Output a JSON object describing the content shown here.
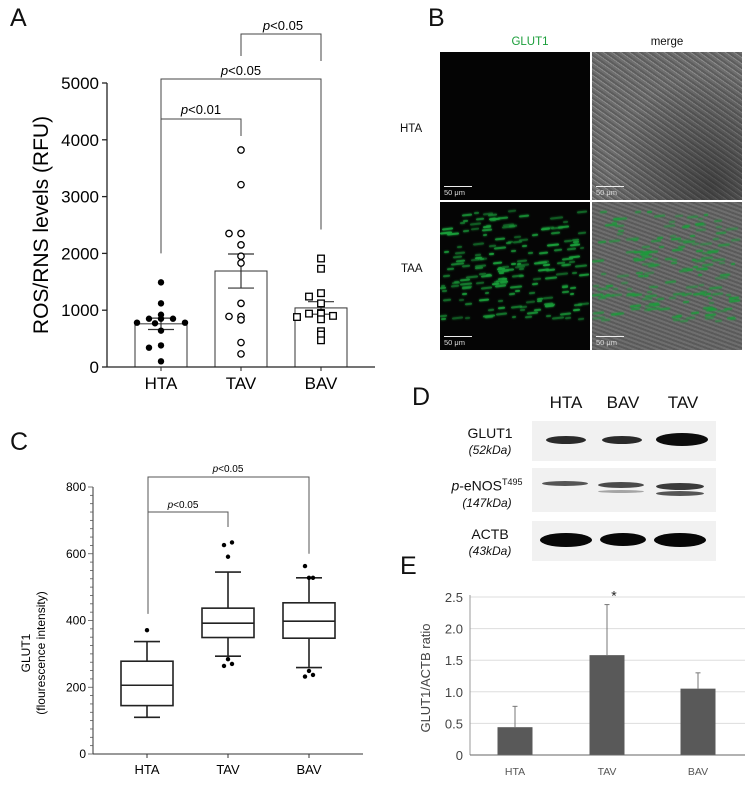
{
  "figure": {
    "panels": {
      "A": {
        "letter": "A"
      },
      "B": {
        "letter": "B"
      },
      "C": {
        "letter": "C"
      },
      "D": {
        "letter": "D"
      },
      "E": {
        "letter": "E"
      }
    }
  },
  "panel_b": {
    "column_headers": [
      "GLUT1",
      "merge"
    ],
    "row_labels": [
      "HTA",
      "TAA"
    ],
    "scale_bar": "50 μm",
    "glut1_color": "#1a9e3a"
  },
  "panel_d": {
    "lanes": [
      "HTA",
      "BAV",
      "TAV"
    ],
    "rows": [
      {
        "protein": "GLUT1",
        "kda": "(52kDa)"
      },
      {
        "protein_prefix": "p",
        "protein": "-eNOS",
        "superscript": "T495",
        "kda": "(147kDa)"
      },
      {
        "protein": "ACTB",
        "kda": "(43kDa)"
      }
    ]
  },
  "chart_data": [
    {
      "panel": "A",
      "type": "bar",
      "title": "",
      "categories": [
        "HTA",
        "TAV",
        "BAV"
      ],
      "values": [
        760,
        1690,
        1040
      ],
      "sem": [
        100,
        300,
        110
      ],
      "ylabel": "ROS/RNS levels (RFU)",
      "xlabel": "",
      "ylim": [
        0,
        5000
      ],
      "yticks": [
        "0",
        "1000",
        "2000",
        "3000",
        "4000",
        "5000"
      ],
      "points": {
        "HTA": [
          1490,
          1120,
          920,
          850,
          850,
          850,
          780,
          780,
          770,
          640,
          380,
          340,
          100
        ],
        "TAV": [
          3820,
          3210,
          2350,
          2350,
          2150,
          1950,
          1830,
          1120,
          890,
          890,
          830,
          430,
          230
        ],
        "BAV": [
          1910,
          1730,
          1300,
          1240,
          1120,
          950,
          940,
          940,
          900,
          880,
          840,
          630,
          570,
          470
        ]
      },
      "markers": {
        "HTA": "filled-circle",
        "TAV": "open-circle",
        "BAV": "open-square"
      },
      "annotations": [
        {
          "from": "HTA",
          "to": "TAV",
          "text": "p<0.01"
        },
        {
          "from": "HTA",
          "to": "BAV",
          "text": "p<0.05"
        },
        {
          "from": "TAV",
          "to": "BAV",
          "text": "p<0.05"
        }
      ],
      "grid": false
    },
    {
      "panel": "C",
      "type": "box",
      "categories": [
        "HTA",
        "TAV",
        "BAV"
      ],
      "boxes": [
        {
          "name": "HTA",
          "whisker_low": 110,
          "q1": 145,
          "median": 206,
          "q3": 278,
          "whisker_high": 337,
          "outliers": [
            371
          ]
        },
        {
          "name": "TAV",
          "whisker_low": 293,
          "q1": 349,
          "median": 392,
          "q3": 437,
          "whisker_high": 545,
          "outliers": [
            626,
            634,
            591,
            284,
            270,
            264
          ]
        },
        {
          "name": "BAV",
          "whisker_low": 259,
          "q1": 347,
          "median": 398,
          "q3": 453,
          "whisker_high": 528,
          "outliers": [
            563,
            528,
            528,
            249,
            237,
            232
          ]
        }
      ],
      "ylabel": "GLUT1\n(flourescence intensity)",
      "ylabel_line1": "GLUT1",
      "ylabel_line2": "(flourescence intensity)",
      "ylim": [
        0,
        800
      ],
      "yticks": [
        "0",
        "200",
        "400",
        "600",
        "800"
      ],
      "annotations": [
        {
          "from": "HTA",
          "to": "TAV",
          "text": "p<0.05"
        },
        {
          "from": "HTA",
          "to": "BAV",
          "text": "p<0.05"
        }
      ],
      "grid": false
    },
    {
      "panel": "E",
      "type": "bar",
      "categories": [
        "HTA",
        "TAV",
        "BAV"
      ],
      "values": [
        0.44,
        1.58,
        1.05
      ],
      "error": [
        0.33,
        0.8,
        0.25
      ],
      "ylabel": "GLUT1/ACTB ratio",
      "ylim": [
        0,
        2.5
      ],
      "yticks": [
        "0",
        "0.5",
        "1.0",
        "1.5",
        "2.0",
        "2.5"
      ],
      "bar_color": "#595959",
      "annotations": [
        {
          "category": "TAV",
          "text": "*"
        }
      ],
      "grid": true
    }
  ]
}
